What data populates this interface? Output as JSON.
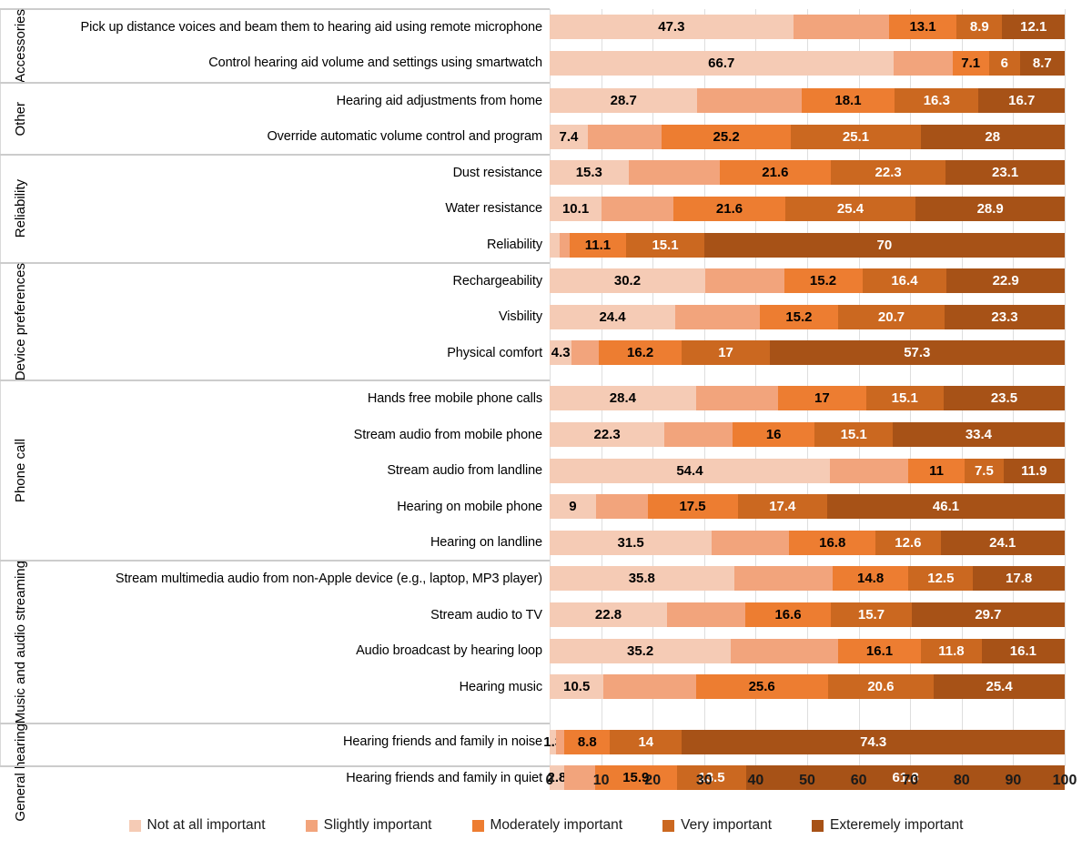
{
  "chart_data": {
    "type": "bar",
    "variant": "horizontal-stacked-100pct",
    "title": "",
    "xlabel": "",
    "ylabel": "",
    "xlim": [
      0,
      100
    ],
    "x_ticks": [
      0,
      10,
      20,
      30,
      40,
      50,
      60,
      70,
      80,
      90,
      100
    ],
    "grid": "vertical-light",
    "legend_position": "bottom",
    "series": [
      {
        "name": "Not at all important",
        "color": "#F5CBB5",
        "label_color": "#000000"
      },
      {
        "name": "Slightly important",
        "color": "#F2A47C",
        "label_color": "#000000"
      },
      {
        "name": "Moderately important",
        "color": "#ED7D31",
        "label_color": "#000000"
      },
      {
        "name": "Very important",
        "color": "#CB6820",
        "label_color": "#FFFFFF"
      },
      {
        "name": "Exteremely important",
        "color": "#A75217",
        "label_color": "#FFFFFF"
      }
    ],
    "groups": [
      {
        "name": "Accessories",
        "rows": [
          {
            "label": "Pick up distance voices and beam them to hearing aid using remote microphone",
            "values": [
              47.3,
              18.6,
              13.1,
              8.9,
              12.1
            ],
            "labeled": [
              true,
              false,
              true,
              true,
              true
            ]
          },
          {
            "label": "Control hearing aid volume and settings using smartwatch",
            "values": [
              66.7,
              11.5,
              7.1,
              6,
              8.7
            ],
            "labeled": [
              true,
              false,
              true,
              true,
              true
            ]
          }
        ]
      },
      {
        "name": "Other",
        "rows": [
          {
            "label": "Hearing aid adjustments from home",
            "values": [
              28.7,
              20.2,
              18.1,
              16.3,
              16.7
            ],
            "labeled": [
              true,
              false,
              true,
              true,
              true
            ]
          },
          {
            "label": "Override automatic volume control and program",
            "values": [
              7.4,
              14.3,
              25.2,
              25.1,
              28
            ],
            "labeled": [
              true,
              false,
              true,
              true,
              true
            ]
          }
        ]
      },
      {
        "name": "Reliability",
        "rows": [
          {
            "label": "Dust resistance",
            "values": [
              15.3,
              17.7,
              21.6,
              22.3,
              23.1
            ],
            "labeled": [
              true,
              false,
              true,
              true,
              true
            ]
          },
          {
            "label": "Water resistance",
            "values": [
              10.1,
              14,
              21.6,
              25.4,
              28.9
            ],
            "labeled": [
              true,
              false,
              true,
              true,
              true
            ]
          },
          {
            "label": "Reliability",
            "values": [
              1.9,
              1.9,
              11.1,
              15.1,
              70
            ],
            "labeled": [
              false,
              false,
              true,
              true,
              true
            ]
          }
        ]
      },
      {
        "name": "Device preferences",
        "rows": [
          {
            "label": "Rechargeability",
            "values": [
              30.2,
              15.3,
              15.2,
              16.4,
              22.9
            ],
            "labeled": [
              true,
              false,
              true,
              true,
              true
            ]
          },
          {
            "label": "Visbility",
            "values": [
              24.4,
              16.4,
              15.2,
              20.7,
              23.3
            ],
            "labeled": [
              true,
              false,
              true,
              true,
              true
            ]
          },
          {
            "label": "Physical comfort",
            "values": [
              4.3,
              5.2,
              16.2,
              17,
              57.3
            ],
            "labeled": [
              true,
              false,
              true,
              true,
              true
            ]
          }
        ]
      },
      {
        "name": "Phone call",
        "rows": [
          {
            "label": "Hands free mobile phone calls",
            "values": [
              28.4,
              16,
              17,
              15.1,
              23.5
            ],
            "labeled": [
              true,
              false,
              true,
              true,
              true
            ]
          },
          {
            "label": "Stream audio from mobile phone",
            "values": [
              22.3,
              13.2,
              16,
              15.1,
              33.4
            ],
            "labeled": [
              true,
              false,
              true,
              true,
              true
            ]
          },
          {
            "label": "Stream audio from landline",
            "values": [
              54.4,
              15.2,
              11,
              7.5,
              11.9
            ],
            "labeled": [
              true,
              false,
              true,
              true,
              true
            ]
          },
          {
            "label": "Hearing on mobile phone",
            "values": [
              9,
              10,
              17.5,
              17.4,
              46.1
            ],
            "labeled": [
              true,
              false,
              true,
              true,
              true
            ]
          },
          {
            "label": "Hearing on landline",
            "values": [
              31.5,
              15,
              16.8,
              12.6,
              24.1
            ],
            "labeled": [
              true,
              false,
              true,
              true,
              true
            ]
          }
        ]
      },
      {
        "name": "Music and audio streaming",
        "rows": [
          {
            "label": "Stream multimedia audio from non-Apple device (e.g., laptop, MP3 player)",
            "values": [
              35.8,
              19.1,
              14.8,
              12.5,
              17.8
            ],
            "labeled": [
              true,
              false,
              true,
              true,
              true
            ]
          },
          {
            "label": "Stream audio to TV",
            "values": [
              22.8,
              15.2,
              16.6,
              15.7,
              29.7
            ],
            "labeled": [
              true,
              false,
              true,
              true,
              true
            ]
          },
          {
            "label": "Audio broadcast by hearing loop",
            "values": [
              35.2,
              20.8,
              16.1,
              11.8,
              16.1
            ],
            "labeled": [
              true,
              false,
              true,
              true,
              true
            ]
          },
          {
            "label": "Hearing music",
            "values": [
              10.5,
              17.9,
              25.6,
              20.6,
              25.4
            ],
            "labeled": [
              true,
              false,
              true,
              true,
              true
            ]
          }
        ]
      },
      {
        "name": "General hearing",
        "rows": [
          {
            "label": "Hearing friends and family in noise",
            "values": [
              1.3,
              1.6,
              8.8,
              14,
              74.3
            ],
            "labeled": [
              true,
              false,
              true,
              true,
              true
            ]
          },
          {
            "label": "Hearing friends and family in quiet",
            "values": [
              2.8,
              6,
              15.9,
              13.5,
              61.8
            ],
            "labeled": [
              true,
              false,
              true,
              true,
              true
            ]
          }
        ]
      }
    ]
  }
}
